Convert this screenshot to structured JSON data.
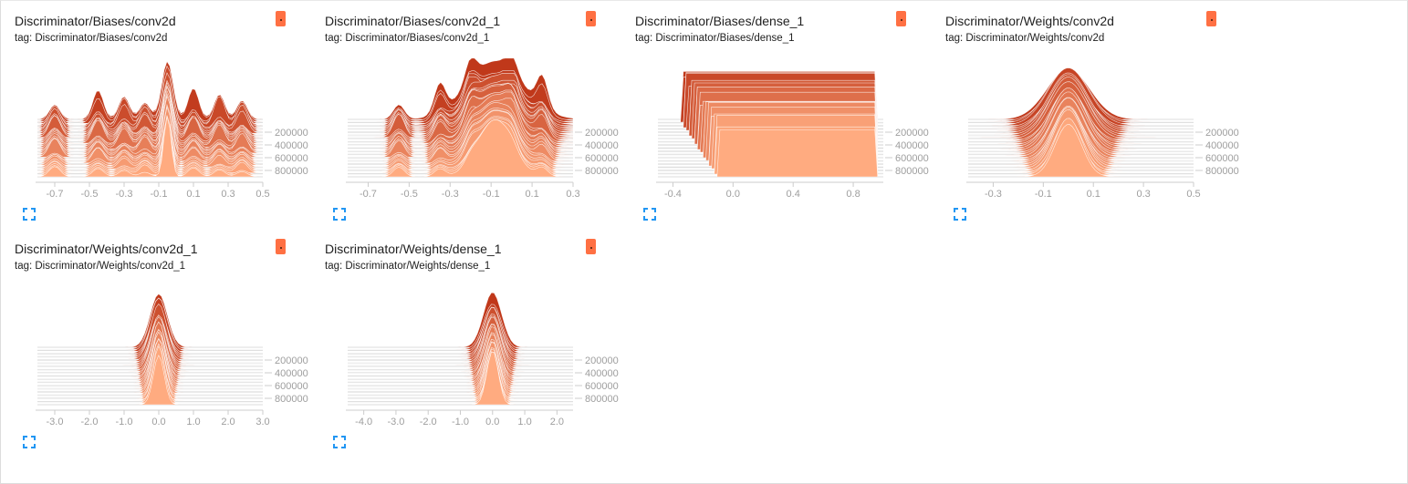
{
  "colors": {
    "accent": "#ff7043",
    "oldest": "#c0381a",
    "newest": "#ffab80",
    "expand": "#2196f3",
    "grid": "#e0e0e0",
    "tick": "#9e9e9e"
  },
  "cards": [
    {
      "title": "Discriminator/Biases/conv2d",
      "tag": "tag: Discriminator/Biases/conv2d",
      "run_badge": "run color",
      "expand_icon": "fullscreen-icon"
    },
    {
      "title": "Discriminator/Biases/conv2d_1",
      "tag": "tag: Discriminator/Biases/conv2d_1",
      "run_badge": "run color",
      "expand_icon": "fullscreen-icon"
    },
    {
      "title": "Discriminator/Biases/dense_1",
      "tag": "tag: Discriminator/Biases/dense_1",
      "run_badge": "run color",
      "expand_icon": "fullscreen-icon"
    },
    {
      "title": "Discriminator/Weights/conv2d",
      "tag": "tag: Discriminator/Weights/conv2d",
      "run_badge": "run color",
      "expand_icon": "fullscreen-icon"
    },
    {
      "title": "Discriminator/Weights/conv2d_1",
      "tag": "tag: Discriminator/Weights/conv2d_1",
      "run_badge": "run color",
      "expand_icon": "fullscreen-icon"
    },
    {
      "title": "Discriminator/Weights/dense_1",
      "tag": "tag: Discriminator/Weights/dense_1",
      "run_badge": "run color",
      "expand_icon": "fullscreen-icon"
    }
  ],
  "chart_data": [
    {
      "type": "area",
      "title": "Discriminator/Biases/conv2d",
      "xlim": [
        -0.8,
        0.5
      ],
      "x_ticks": [
        "-0.7",
        "-0.5",
        "-0.3",
        "-0.1",
        "0.1",
        "0.3",
        "0.5"
      ],
      "x_tick_values": [
        -0.7,
        -0.5,
        -0.3,
        -0.1,
        0.1,
        0.3,
        0.5
      ],
      "step_ticks": [
        "200000",
        "400000",
        "600000",
        "800000"
      ],
      "step_tick_values": [
        200000,
        400000,
        600000,
        800000
      ],
      "step_range": [
        0,
        900000
      ],
      "distribution": "multi-peak-narrow-center",
      "center": -0.05,
      "peak_spread": 0.03,
      "side_peaks": [
        -0.7,
        -0.45,
        -0.3,
        -0.18,
        0.1,
        0.25,
        0.38
      ],
      "max_height": 0.95,
      "slices": 30
    },
    {
      "type": "area",
      "title": "Discriminator/Biases/conv2d_1",
      "xlim": [
        -0.8,
        0.3
      ],
      "x_ticks": [
        "-0.7",
        "-0.5",
        "-0.3",
        "-0.1",
        "0.1",
        "0.3"
      ],
      "x_tick_values": [
        -0.7,
        -0.5,
        -0.3,
        -0.1,
        0.1,
        0.3
      ],
      "step_ticks": [
        "200000",
        "400000",
        "600000",
        "800000"
      ],
      "step_tick_values": [
        200000,
        400000,
        600000,
        800000
      ],
      "step_range": [
        0,
        900000
      ],
      "distribution": "skewed-broad",
      "center": -0.08,
      "peak_spread": 0.12,
      "side_peaks": [
        -0.55,
        -0.35,
        -0.2,
        0.0,
        0.15
      ],
      "max_height": 0.9,
      "slices": 30
    },
    {
      "type": "area",
      "title": "Discriminator/Biases/dense_1",
      "xlim": [
        -0.5,
        1.0
      ],
      "x_ticks": [
        "-0.4",
        "0.0",
        "0.4",
        "0.8"
      ],
      "x_tick_values": [
        -0.4,
        0.0,
        0.4,
        0.8
      ],
      "step_ticks": [
        "200000",
        "400000",
        "600000",
        "800000"
      ],
      "step_tick_values": [
        200000,
        400000,
        600000,
        800000
      ],
      "step_range": [
        0,
        900000
      ],
      "distribution": "plateau",
      "center": 0.4,
      "peak_spread": 0.5,
      "side_peaks": [],
      "max_height": 0.9,
      "slices": 22
    },
    {
      "type": "area",
      "title": "Discriminator/Weights/conv2d",
      "xlim": [
        -0.4,
        0.5
      ],
      "x_ticks": [
        "-0.3",
        "-0.1",
        "0.1",
        "0.3",
        "0.5"
      ],
      "x_tick_values": [
        -0.3,
        -0.1,
        0.1,
        0.3,
        0.5
      ],
      "step_ticks": [
        "200000",
        "400000",
        "600000",
        "800000"
      ],
      "step_tick_values": [
        200000,
        400000,
        600000,
        800000
      ],
      "step_range": [
        0,
        900000
      ],
      "distribution": "gaussian",
      "center": 0.0,
      "peak_spread": 0.075,
      "side_peaks": [],
      "max_height": 0.95,
      "slices": 30
    },
    {
      "type": "area",
      "title": "Discriminator/Weights/conv2d_1",
      "xlim": [
        -3.5,
        3.0
      ],
      "x_ticks": [
        "-3.0",
        "-2.0",
        "-1.0",
        "0.0",
        "1.0",
        "2.0",
        "3.0"
      ],
      "x_tick_values": [
        -3.0,
        -2.0,
        -1.0,
        0.0,
        1.0,
        2.0,
        3.0
      ],
      "step_ticks": [
        "200000",
        "400000",
        "600000",
        "800000"
      ],
      "step_tick_values": [
        200000,
        400000,
        600000,
        800000
      ],
      "step_range": [
        0,
        900000
      ],
      "distribution": "narrow-peak",
      "center": 0.0,
      "peak_spread": 0.22,
      "side_peaks": [],
      "max_height": 0.9,
      "slices": 30
    },
    {
      "type": "area",
      "title": "Discriminator/Weights/dense_1",
      "xlim": [
        -4.5,
        2.5
      ],
      "x_ticks": [
        "-4.0",
        "-3.0",
        "-2.0",
        "-1.0",
        "0.0",
        "1.0",
        "2.0"
      ],
      "x_tick_values": [
        -4.0,
        -3.0,
        -2.0,
        -1.0,
        0.0,
        1.0,
        2.0
      ],
      "step_ticks": [
        "200000",
        "400000",
        "600000",
        "800000"
      ],
      "step_tick_values": [
        200000,
        400000,
        600000,
        800000
      ],
      "step_range": [
        0,
        900000
      ],
      "distribution": "narrow-peak",
      "center": 0.0,
      "peak_spread": 0.25,
      "side_peaks": [],
      "max_height": 0.85,
      "slices": 30
    }
  ]
}
